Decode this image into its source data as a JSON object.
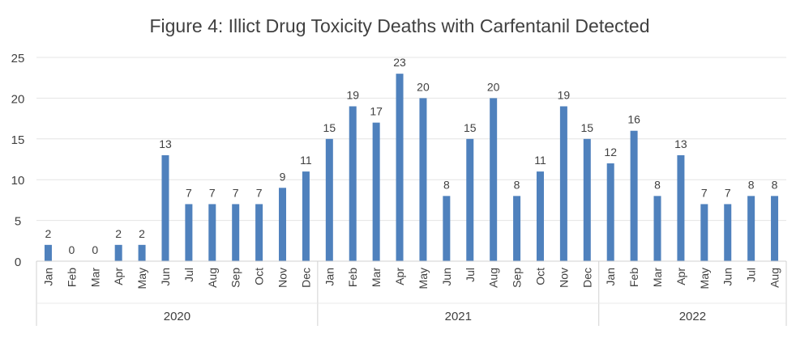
{
  "chart_data": {
    "type": "bar",
    "title": "Figure 4: Illict Drug Toxicity Deaths with Carfentanil Detected",
    "xlabel": "",
    "ylabel": "",
    "ylim": [
      0,
      25
    ],
    "yticks": [
      0,
      5,
      10,
      15,
      20,
      25
    ],
    "grid": true,
    "legend": "none",
    "bar_color": "#4F81BD",
    "groups": [
      {
        "label": "2020",
        "categories": [
          "Jan",
          "Feb",
          "Mar",
          "Apr",
          "May",
          "Jun",
          "Jul",
          "Aug",
          "Sep",
          "Oct",
          "Nov",
          "Dec"
        ],
        "values": [
          2,
          0,
          0,
          2,
          2,
          13,
          7,
          7,
          7,
          7,
          9,
          11
        ]
      },
      {
        "label": "2021",
        "categories": [
          "Jan",
          "Feb",
          "Mar",
          "Apr",
          "May",
          "Jun",
          "Jul",
          "Aug",
          "Sep",
          "Oct",
          "Nov",
          "Dec"
        ],
        "values": [
          15,
          19,
          17,
          23,
          20,
          8,
          15,
          20,
          8,
          11,
          19,
          15
        ]
      },
      {
        "label": "2022",
        "categories": [
          "Jan",
          "Feb",
          "Mar",
          "Apr",
          "May",
          "Jun",
          "Jul",
          "Aug"
        ],
        "values": [
          12,
          16,
          8,
          13,
          7,
          7,
          8,
          8
        ]
      }
    ]
  }
}
